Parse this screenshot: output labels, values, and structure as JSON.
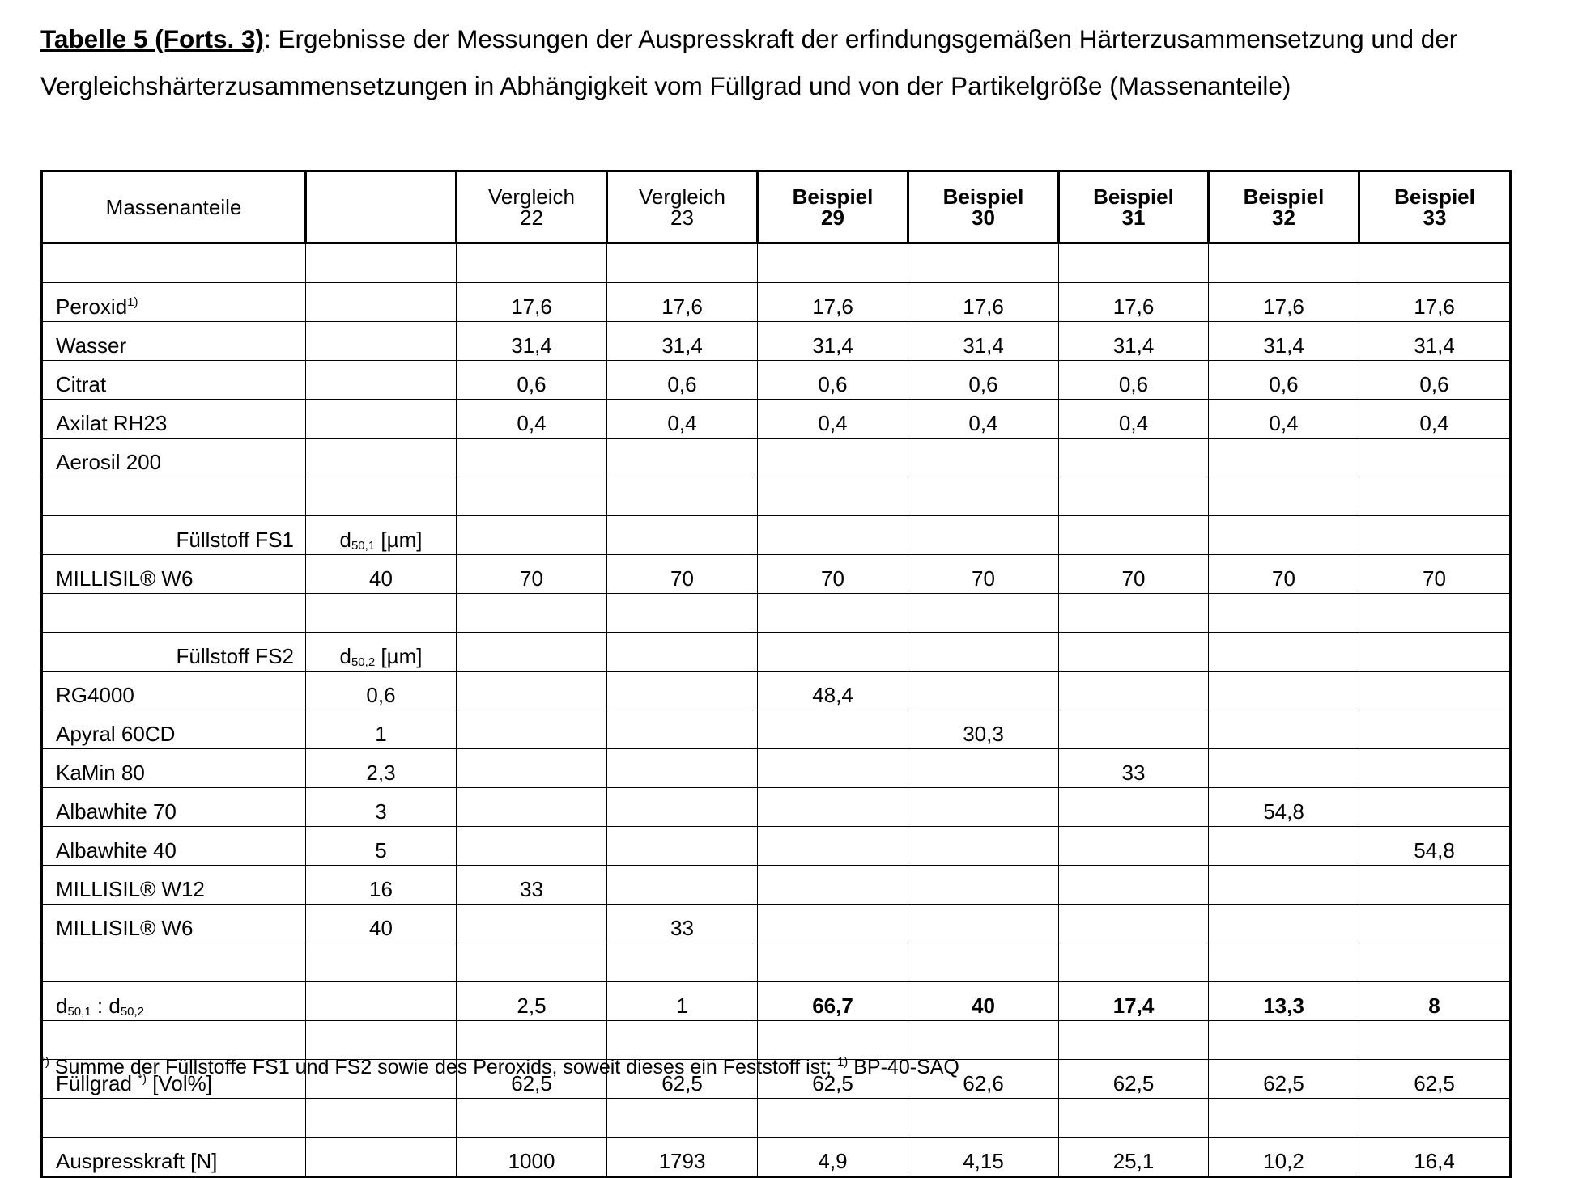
{
  "title": {
    "label": "Tabelle 5 (Forts. 3)",
    "line1": ": Ergebnisse der Messungen der Auspresskraft der erfindungsgemäßen Härterzusammensetzung und der",
    "line2": "Vergleichshärterzusammensetzungen in Abhängigkeit vom Füllgrad und von der Partikelgröße (Massenanteile)"
  },
  "table": {
    "header": {
      "first": "Massenanteile",
      "columns": [
        {
          "line1": "Vergleich",
          "line2": "22"
        },
        {
          "line1": "Vergleich",
          "line2": "23"
        },
        {
          "line1": "Beispiel",
          "line2": "29"
        },
        {
          "line1": "Beispiel",
          "line2": "30"
        },
        {
          "line1": "Beispiel",
          "line2": "31"
        },
        {
          "line1": "Beispiel",
          "line2": "32"
        },
        {
          "line1": "Beispiel",
          "line2": "33"
        }
      ]
    },
    "rows": [
      [
        null,
        null,
        null,
        null,
        null,
        null,
        null,
        null,
        null
      ],
      [
        {
          "text": "Peroxid",
          "sup": "1)"
        },
        null,
        "17,6",
        "17,6",
        "17,6",
        "17,6",
        "17,6",
        "17,6",
        "17,6"
      ],
      [
        "Wasser",
        null,
        "31,4",
        "31,4",
        "31,4",
        "31,4",
        "31,4",
        "31,4",
        "31,4"
      ],
      [
        "Citrat",
        null,
        "0,6",
        "0,6",
        "0,6",
        "0,6",
        "0,6",
        "0,6",
        "0,6"
      ],
      [
        "Axilat RH23",
        null,
        "0,4",
        "0,4",
        "0,4",
        "0,4",
        "0,4",
        "0,4",
        "0,4"
      ],
      [
        "Aerosil 200",
        null,
        null,
        null,
        null,
        null,
        null,
        null,
        null
      ],
      [
        null,
        null,
        null,
        null,
        null,
        null,
        null,
        null,
        null
      ],
      [
        "Füllstoff FS1",
        {
          "text": "d",
          "sub": "50,1",
          "post": " [µm]"
        },
        null,
        null,
        null,
        null,
        null,
        null,
        null
      ],
      [
        "MILLISIL® W6",
        "40",
        "70",
        "70",
        "70",
        "70",
        "70",
        "70",
        "70"
      ],
      [
        null,
        null,
        null,
        null,
        null,
        null,
        null,
        null,
        null
      ],
      [
        "Füllstoff FS2",
        {
          "text": "d",
          "sub": "50,2",
          "post": " [µm]"
        },
        null,
        null,
        null,
        null,
        null,
        null,
        null
      ],
      [
        "RG4000",
        "0,6",
        null,
        null,
        "48,4",
        null,
        null,
        null,
        null
      ],
      [
        "Apyral 60CD",
        "1",
        null,
        null,
        null,
        "30,3",
        null,
        null,
        null
      ],
      [
        "KaMin 80",
        "2,3",
        null,
        null,
        null,
        null,
        "33",
        null,
        null
      ],
      [
        "Albawhite 70",
        "3",
        null,
        null,
        null,
        null,
        null,
        "54,8",
        null
      ],
      [
        "Albawhite 40",
        "5",
        null,
        null,
        null,
        null,
        null,
        null,
        "54,8"
      ],
      [
        "MILLISIL® W12",
        "16",
        "33",
        null,
        null,
        null,
        null,
        null,
        null
      ],
      [
        "MILLISIL® W6",
        "40",
        null,
        "33",
        null,
        null,
        null,
        null,
        null
      ],
      [
        null,
        null,
        null,
        null,
        null,
        null,
        null,
        null,
        null
      ],
      [
        {
          "text": "d",
          "sub": "50,1",
          "post": " : d",
          "sub2": "50,2"
        },
        null,
        "2,5",
        "1",
        "66,7",
        "40",
        "17,4",
        "13,3",
        "8"
      ],
      [
        null,
        null,
        null,
        null,
        null,
        null,
        null,
        null,
        null
      ],
      [
        {
          "text": "Füllgrad ",
          "sup": "*)",
          "post": " [Vol%]"
        },
        null,
        "62,5",
        "62,5",
        "62,5",
        "62,6",
        "62,5",
        "62,5",
        "62,5"
      ],
      [
        null,
        null,
        null,
        null,
        null,
        null,
        null,
        null,
        null
      ],
      [
        "Auspresskraft [N]",
        null,
        "1000",
        "1793",
        "4,9",
        "4,15",
        "25,1",
        "10,2",
        "16,4"
      ]
    ]
  },
  "footnote": {
    "sup1": "*)",
    "text1": " Summe der Füllstoffe FS1 und FS2 sowie des Peroxids, soweit dieses ein Feststoff ist; ",
    "sup2": "1)",
    "text2": " BP-40-SAQ"
  }
}
